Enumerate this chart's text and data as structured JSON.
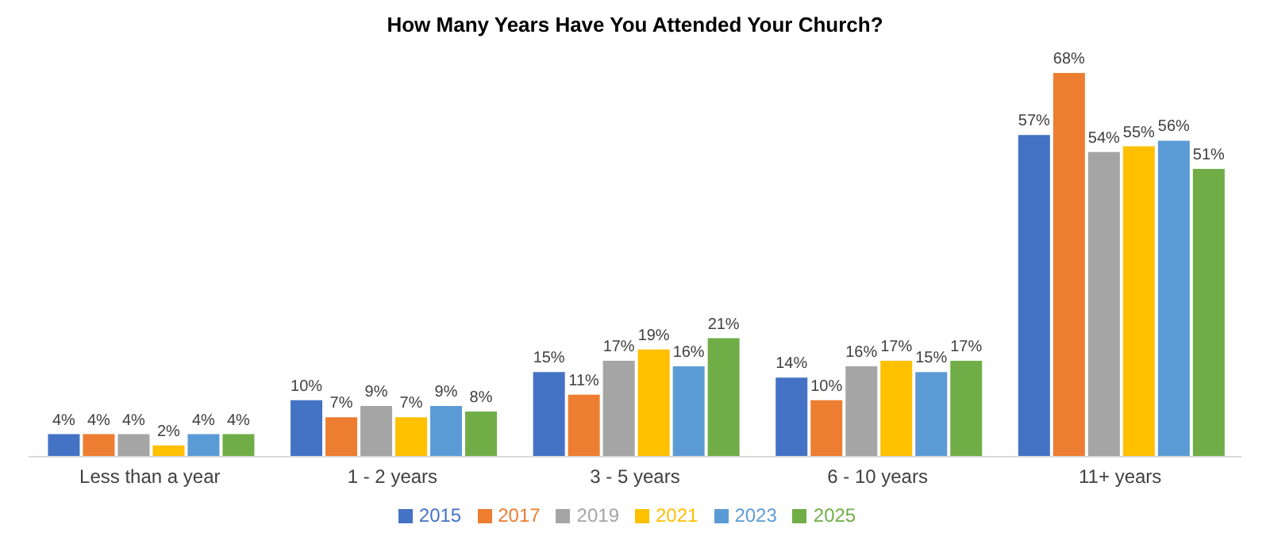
{
  "chart_data": {
    "type": "bar",
    "title": "How Many Years Have You Attended Your Church?",
    "categories": [
      "Less than a year",
      "1 - 2 years",
      "3 - 5 years",
      "6 - 10 years",
      "11+ years"
    ],
    "series": [
      {
        "name": "2015",
        "color": "#4472c4",
        "values": [
          4,
          10,
          15,
          14,
          57
        ],
        "value_labels": [
          "4%",
          "10%",
          "15%",
          "14%",
          "57%"
        ]
      },
      {
        "name": "2017",
        "color": "#ed7d31",
        "values": [
          4,
          7,
          11,
          10,
          68
        ],
        "value_labels": [
          "4%",
          "7%",
          "11%",
          "10%",
          "68%"
        ]
      },
      {
        "name": "2019",
        "color": "#a5a5a5",
        "values": [
          4,
          9,
          17,
          16,
          54
        ],
        "value_labels": [
          "4%",
          "9%",
          "17%",
          "16%",
          "54%"
        ]
      },
      {
        "name": "2021",
        "color": "#ffc000",
        "values": [
          2,
          7,
          19,
          17,
          55
        ],
        "value_labels": [
          "2%",
          "7%",
          "19%",
          "17%",
          "55%"
        ]
      },
      {
        "name": "2023",
        "color": "#5b9bd5",
        "values": [
          4,
          9,
          16,
          15,
          56
        ],
        "value_labels": [
          "4%",
          "9%",
          "16%",
          "15%",
          "56%"
        ]
      },
      {
        "name": "2025",
        "color": "#70ad47",
        "values": [
          4,
          8,
          21,
          17,
          51
        ],
        "value_labels": [
          "4%",
          "8%",
          "21%",
          "17%",
          "51%"
        ]
      }
    ],
    "legend": "bottom",
    "grid": false
  }
}
